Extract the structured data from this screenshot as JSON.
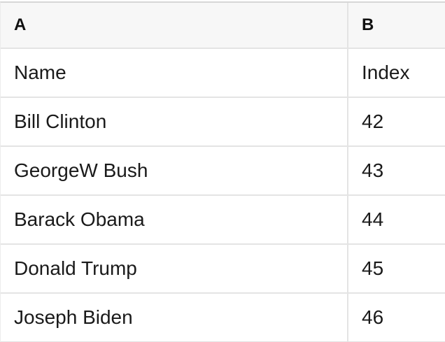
{
  "table": {
    "columns": [
      {
        "id": "A",
        "header": "A"
      },
      {
        "id": "B",
        "header": "B"
      }
    ],
    "rows": [
      {
        "a": "Name",
        "b": "Index"
      },
      {
        "a": "Bill Clinton",
        "b": "42"
      },
      {
        "a": "GeorgeW Bush",
        "b": "43"
      },
      {
        "a": "Barack Obama",
        "b": "44"
      },
      {
        "a": "Donald Trump",
        "b": "45"
      },
      {
        "a": "Joseph Biden",
        "b": "46"
      }
    ],
    "colors": {
      "header_background": "#f7f7f7",
      "grid_border": "#e4e4e4",
      "top_border": "#d6d6d6",
      "text": "#1a1a1a",
      "body_background": "#ffffff"
    }
  }
}
